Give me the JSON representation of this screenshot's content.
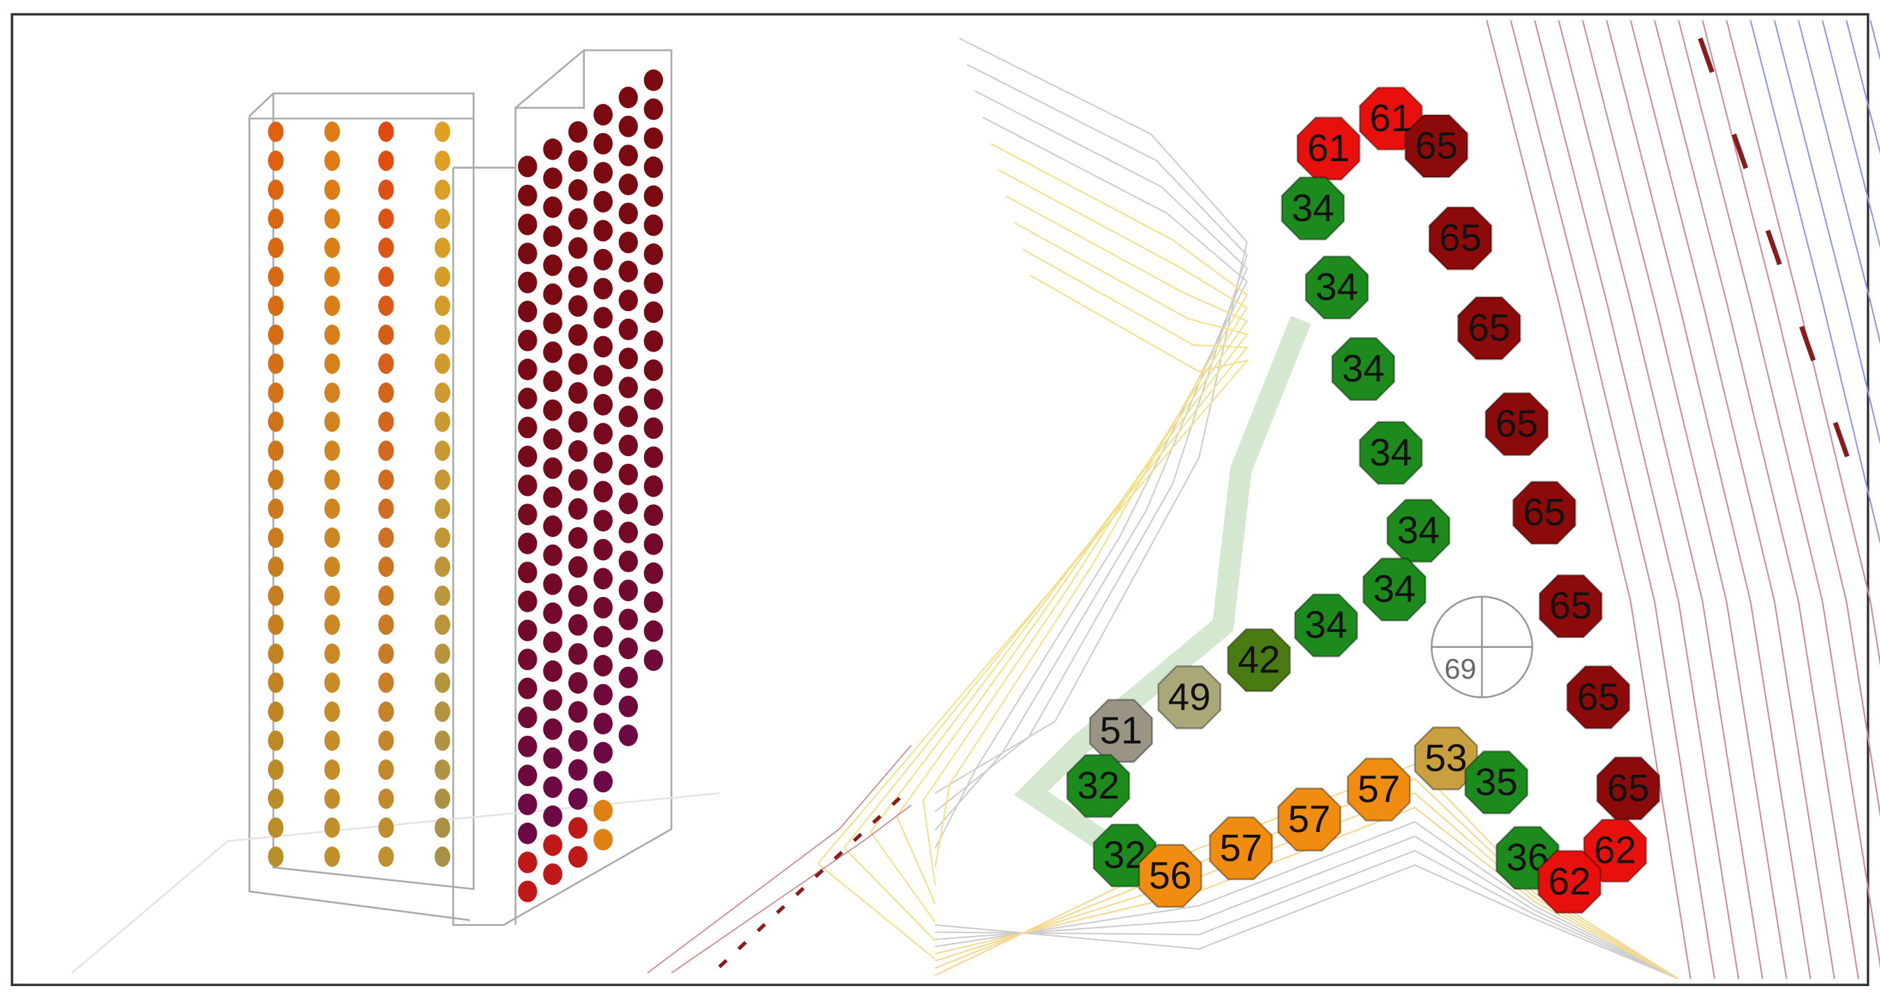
{
  "receivers": [
    {
      "label": 61,
      "color": "#e8100c"
    },
    {
      "label": 61,
      "color": "#e8100c"
    },
    {
      "label": 65,
      "color": "#8c0a0a"
    },
    {
      "label": 34,
      "color": "#1c8a1c"
    },
    {
      "label": 65,
      "color": "#8c0a0a"
    },
    {
      "label": 34,
      "color": "#1c8a1c"
    },
    {
      "label": 65,
      "color": "#8c0a0a"
    },
    {
      "label": 34,
      "color": "#1c8a1c"
    },
    {
      "label": 65,
      "color": "#8c0a0a"
    },
    {
      "label": 34,
      "color": "#1c8a1c"
    },
    {
      "label": 34,
      "color": "#1c8a1c"
    },
    {
      "label": 65,
      "color": "#8c0a0a"
    },
    {
      "label": 34,
      "color": "#1c8a1c"
    },
    {
      "label": 65,
      "color": "#8c0a0a"
    },
    {
      "label": 34,
      "color": "#1c8a1c"
    },
    {
      "label": 42,
      "color": "#4a7a12"
    },
    {
      "label": 49,
      "color": "#aaa878"
    },
    {
      "label": 51,
      "color": "#9a9484"
    },
    {
      "label": 65,
      "color": "#8c0a0a"
    },
    {
      "label": 53,
      "color": "#c9a040"
    },
    {
      "label": 35,
      "color": "#1c8a1c"
    },
    {
      "label": 32,
      "color": "#1c8a1c"
    },
    {
      "label": 57,
      "color": "#f08c10"
    },
    {
      "label": 57,
      "color": "#f08c10"
    },
    {
      "label": 65,
      "color": "#8c0a0a"
    },
    {
      "label": 57,
      "color": "#f08c10"
    },
    {
      "label": 32,
      "color": "#1c8a1c"
    },
    {
      "label": 56,
      "color": "#f08c10"
    },
    {
      "label": 36,
      "color": "#1c8a1c"
    },
    {
      "label": 62,
      "color": "#e8100c"
    },
    {
      "label": 62,
      "color": "#e8100c"
    }
  ],
  "center_label": 69
}
